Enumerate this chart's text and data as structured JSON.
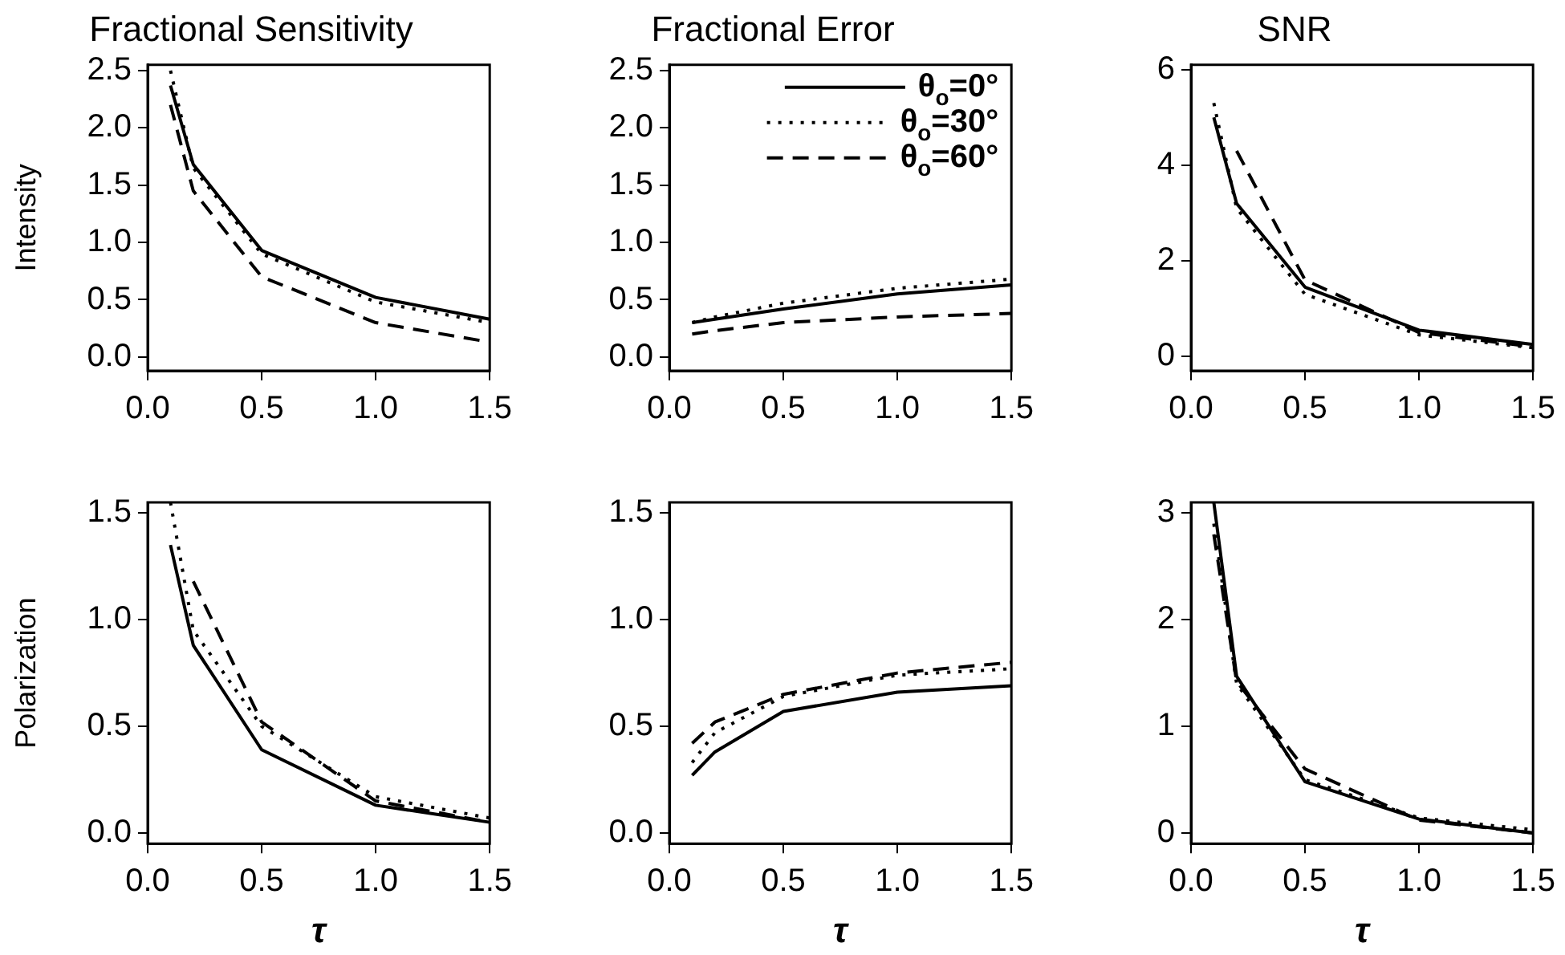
{
  "chart_data": [
    {
      "type": "line",
      "title": "Fractional Sensitivity",
      "ylabel": "Intensity",
      "x": [
        0.1,
        0.2,
        0.5,
        1.0,
        1.5
      ],
      "xlim": [
        0,
        1.5
      ],
      "xticks": [
        {
          "value": 0,
          "label": "0.0"
        },
        {
          "value": 0.5,
          "label": "0.5"
        },
        {
          "value": 1,
          "label": "1.0"
        },
        {
          "value": 1.5,
          "label": "1.5"
        }
      ],
      "ylim": [
        -0.12,
        2.55
      ],
      "yticks": [
        {
          "value": 0,
          "label": "0.0"
        },
        {
          "value": 0.5,
          "label": "0.5"
        },
        {
          "value": 1,
          "label": "1.0"
        },
        {
          "value": 1.5,
          "label": "1.5"
        },
        {
          "value": 2,
          "label": "2.0"
        },
        {
          "value": 2.5,
          "label": "2.5"
        }
      ],
      "grid": false,
      "legend": false,
      "series": [
        {
          "color": "#000000",
          "line_style": "solid",
          "values": [
            2.37,
            1.68,
            0.93,
            0.52,
            0.33
          ]
        },
        {
          "color": "#000000",
          "line_style": "dotted",
          "values": [
            2.5,
            1.65,
            0.9,
            0.48,
            0.3
          ]
        },
        {
          "color": "#000000",
          "line_style": "dashed",
          "values": [
            2.2,
            1.45,
            0.7,
            0.3,
            0.13
          ]
        }
      ]
    },
    {
      "type": "line",
      "title": "Fractional Error",
      "x": [
        0.1,
        0.2,
        0.5,
        1.0,
        1.5
      ],
      "xlim": [
        0,
        1.5
      ],
      "xticks": [
        {
          "value": 0,
          "label": "0.0"
        },
        {
          "value": 0.5,
          "label": "0.5"
        },
        {
          "value": 1,
          "label": "1.0"
        },
        {
          "value": 1.5,
          "label": "1.5"
        }
      ],
      "ylim": [
        -0.12,
        2.55
      ],
      "yticks": [
        {
          "value": 0,
          "label": "0.0"
        },
        {
          "value": 0.5,
          "label": "0.5"
        },
        {
          "value": 1,
          "label": "1.0"
        },
        {
          "value": 1.5,
          "label": "1.5"
        },
        {
          "value": 2,
          "label": "2.0"
        },
        {
          "value": 2.5,
          "label": "2.5"
        }
      ],
      "grid": false,
      "legend": "top right",
      "series": [
        {
          "name": "θ$_{o}$=0°",
          "color": "#000000",
          "line_style": "solid",
          "values": [
            0.3,
            0.33,
            0.42,
            0.55,
            0.63
          ]
        },
        {
          "name": "θ$_{o}$=30°",
          "color": "#000000",
          "line_style": "dotted",
          "values": [
            0.3,
            0.35,
            0.47,
            0.6,
            0.68
          ]
        },
        {
          "name": "θ$_{o}$=60°",
          "color": "#000000",
          "line_style": "dashed",
          "values": [
            0.2,
            0.23,
            0.3,
            0.35,
            0.38
          ]
        }
      ]
    },
    {
      "type": "line",
      "title": "SNR",
      "x": [
        0.1,
        0.2,
        0.5,
        1.0,
        1.5
      ],
      "xlim": [
        0,
        1.5
      ],
      "xticks": [
        {
          "value": 0,
          "label": "0.0"
        },
        {
          "value": 0.5,
          "label": "0.5"
        },
        {
          "value": 1,
          "label": "1.0"
        },
        {
          "value": 1.5,
          "label": "1.5"
        }
      ],
      "ylim": [
        -0.3,
        6.1
      ],
      "yticks": [
        0,
        2,
        4,
        6
      ],
      "grid": false,
      "legend": false,
      "series": [
        {
          "color": "#000000",
          "line_style": "solid",
          "values": [
            5.0,
            3.2,
            1.45,
            0.55,
            0.25
          ]
        },
        {
          "color": "#000000",
          "line_style": "dotted",
          "values": [
            5.3,
            3.1,
            1.3,
            0.45,
            0.18
          ]
        },
        {
          "color": "#000000",
          "line_style": "dashed",
          "values": [
            null,
            4.3,
            1.6,
            0.5,
            0.2
          ]
        }
      ]
    },
    {
      "type": "line",
      "ylabel": "Polarization",
      "xlabel": "τ",
      "x": [
        0.1,
        0.2,
        0.5,
        1.0,
        1.5
      ],
      "xlim": [
        0,
        1.5
      ],
      "xticks": [
        {
          "value": 0,
          "label": "0.0"
        },
        {
          "value": 0.5,
          "label": "0.5"
        },
        {
          "value": 1,
          "label": "1.0"
        },
        {
          "value": 1.5,
          "label": "1.5"
        }
      ],
      "ylim": [
        -0.05,
        1.55
      ],
      "yticks": [
        {
          "value": 0,
          "label": "0.0"
        },
        {
          "value": 0.5,
          "label": "0.5"
        },
        {
          "value": 1,
          "label": "1.0"
        },
        {
          "value": 1.5,
          "label": "1.5"
        }
      ],
      "grid": false,
      "legend": false,
      "series": [
        {
          "color": "#000000",
          "line_style": "solid",
          "values": [
            1.35,
            0.88,
            0.39,
            0.13,
            0.05
          ]
        },
        {
          "color": "#000000",
          "line_style": "dotted",
          "values": [
            1.55,
            0.95,
            0.5,
            0.17,
            0.07
          ]
        },
        {
          "color": "#000000",
          "line_style": "dashed",
          "values": [
            null,
            1.18,
            0.52,
            0.15,
            0.05
          ]
        }
      ]
    },
    {
      "type": "line",
      "xlabel": "τ",
      "x": [
        0.1,
        0.2,
        0.5,
        1.0,
        1.5
      ],
      "xlim": [
        0,
        1.5
      ],
      "xticks": [
        {
          "value": 0,
          "label": "0.0"
        },
        {
          "value": 0.5,
          "label": "0.5"
        },
        {
          "value": 1,
          "label": "1.0"
        },
        {
          "value": 1.5,
          "label": "1.5"
        }
      ],
      "ylim": [
        -0.05,
        1.55
      ],
      "yticks": [
        {
          "value": 0,
          "label": "0.0"
        },
        {
          "value": 0.5,
          "label": "0.5"
        },
        {
          "value": 1,
          "label": "1.0"
        },
        {
          "value": 1.5,
          "label": "1.5"
        }
      ],
      "grid": false,
      "legend": false,
      "series": [
        {
          "color": "#000000",
          "line_style": "solid",
          "values": [
            0.27,
            0.38,
            0.57,
            0.66,
            0.69
          ]
        },
        {
          "color": "#000000",
          "line_style": "dotted",
          "values": [
            0.33,
            0.47,
            0.64,
            0.74,
            0.77
          ]
        },
        {
          "color": "#000000",
          "line_style": "dashed",
          "values": [
            0.42,
            0.52,
            0.65,
            0.75,
            0.8
          ]
        }
      ]
    },
    {
      "type": "line",
      "xlabel": "τ",
      "x": [
        0.1,
        0.2,
        0.5,
        1.0,
        1.5
      ],
      "xlim": [
        0,
        1.5
      ],
      "xticks": [
        {
          "value": 0,
          "label": "0.0"
        },
        {
          "value": 0.5,
          "label": "0.5"
        },
        {
          "value": 1,
          "label": "1.0"
        },
        {
          "value": 1.5,
          "label": "1.5"
        }
      ],
      "ylim": [
        -0.1,
        3.1
      ],
      "yticks": [
        0,
        1,
        2,
        3
      ],
      "grid": false,
      "legend": false,
      "series": [
        {
          "color": "#000000",
          "line_style": "solid",
          "values": [
            3.1,
            1.47,
            0.48,
            0.13,
            0.0
          ]
        },
        {
          "color": "#000000",
          "line_style": "dotted",
          "values": [
            2.9,
            1.4,
            0.5,
            0.14,
            0.03
          ]
        },
        {
          "color": "#000000",
          "line_style": "dashed",
          "values": [
            2.8,
            1.42,
            0.6,
            0.12,
            0.0
          ]
        }
      ]
    }
  ]
}
